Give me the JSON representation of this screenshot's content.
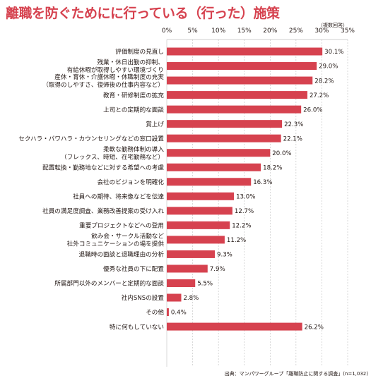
{
  "title": "離職を防ぐためにに行っている（行った）施策",
  "note": "（複数回答）",
  "source": "出典：マンパワーグループ「離職防止に関する調査」(n=1,032)",
  "colors": {
    "bar": "#d6424f",
    "title": "#d6424f",
    "text": "#231815",
    "grid": "#bfbfbf"
  },
  "chart_data": {
    "type": "bar",
    "orientation": "horizontal",
    "title": "離職を防ぐためにに行っている（行った）施策",
    "xlabel": "",
    "ylabel": "",
    "xlim": [
      0,
      35
    ],
    "x_ticks": [
      "0%",
      "5%",
      "10%",
      "15%",
      "20%",
      "25%",
      "30%",
      "35%"
    ],
    "categories": [
      [
        "評価制度の見直し"
      ],
      [
        "残業・休日出勤の抑制、",
        "有給休暇が取得しやすい環境づくり"
      ],
      [
        "産休・育休・介護休暇・休職制度の充実",
        "（取得のしやすさ、復帰後の仕事内容など）"
      ],
      [
        "教育・研修制度の拡充"
      ],
      [
        "上司との定期的な面談"
      ],
      [
        "賞上げ"
      ],
      [
        "セクハラ・パワハラ・カウンセリングなどの窓口設置"
      ],
      [
        "柔軟な勤務体制の導入",
        "（フレックス、時短、在宅勤務など）"
      ],
      [
        "配置転換・勤務地などに対する希望への考慮"
      ],
      [
        "会社のビジョンを明確化"
      ],
      [
        "社員への期待、将来像などを伝達"
      ],
      [
        "社員の満足度調査、業務改善提案の受け入れ"
      ],
      [
        "重要プロジェクトなどへの登用"
      ],
      [
        "飲み会・サークル活動など",
        "社外コミュニケーションの場を提供"
      ],
      [
        "退職時の面談と退職理由の分析"
      ],
      [
        "優秀な社員の下に配置"
      ],
      [
        "所属部門以外のメンバーと定期的な面談"
      ],
      [
        "社内SNSの設置"
      ],
      [
        "その他"
      ],
      [
        "特に何もしていない"
      ]
    ],
    "values": [
      30.1,
      29.0,
      28.2,
      27.2,
      26.0,
      22.3,
      22.1,
      20.0,
      18.2,
      16.3,
      13.0,
      12.7,
      12.2,
      11.2,
      9.3,
      7.9,
      5.5,
      2.8,
      0.4,
      26.2
    ],
    "value_labels": [
      "30.1%",
      "29.0%",
      "28.2%",
      "27.2%",
      "26.0%",
      "22.3%",
      "22.1%",
      "20.0%",
      "18.2%",
      "16.3%",
      "13.0%",
      "12.7%",
      "12.2%",
      "11.2%",
      "9.3%",
      "7.9%",
      "5.5%",
      "2.8%",
      "0.4%",
      "26.2%"
    ],
    "grid": true,
    "legend": "none"
  }
}
